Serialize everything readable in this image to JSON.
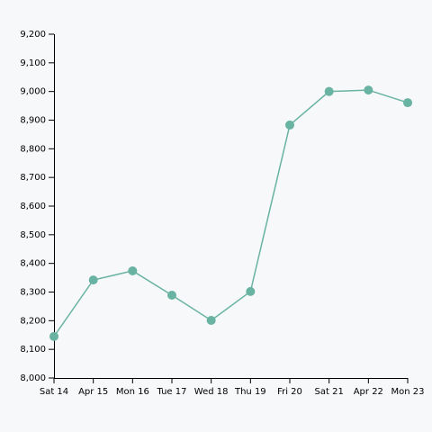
{
  "chart_data": {
    "type": "line",
    "categories": [
      "Sat 14",
      "Apr 15",
      "Mon 16",
      "Tue 17",
      "Wed 18",
      "Thu 19",
      "Fri 20",
      "Sat 21",
      "Apr 22",
      "Mon 23"
    ],
    "values": [
      8145,
      8342,
      8374,
      8289,
      8201,
      8302,
      8883,
      9000,
      9005,
      8961
    ],
    "color": "#69b3a2",
    "ylim": [
      8000,
      9200
    ],
    "yticks": [
      {
        "value": 8000,
        "label": "8,000"
      },
      {
        "value": 8100,
        "label": "8,100"
      },
      {
        "value": 8200,
        "label": "8,200"
      },
      {
        "value": 8300,
        "label": "8,300"
      },
      {
        "value": 8400,
        "label": "8,400"
      },
      {
        "value": 8500,
        "label": "8,500"
      },
      {
        "value": 8600,
        "label": "8,600"
      },
      {
        "value": 8700,
        "label": "8,700"
      },
      {
        "value": 8800,
        "label": "8,800"
      },
      {
        "value": 8900,
        "label": "8,900"
      },
      {
        "value": 9000,
        "label": "9,000"
      },
      {
        "value": 9100,
        "label": "9,100"
      },
      {
        "value": 9200,
        "label": "9,200"
      }
    ]
  }
}
